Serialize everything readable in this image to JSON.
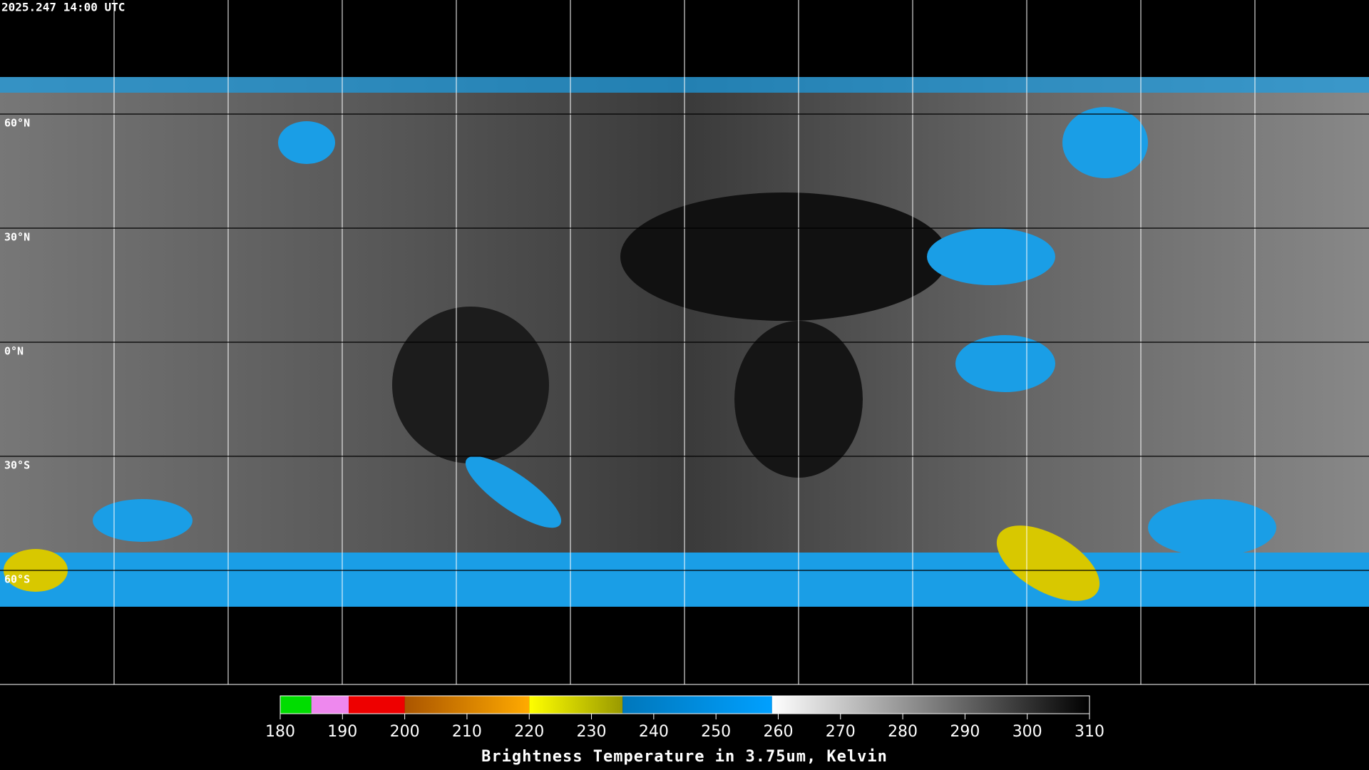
{
  "header": {
    "title": "2025.247 14:00 UTC"
  },
  "map": {
    "lat_range": [
      90,
      -90
    ],
    "lat_ticks": [
      {
        "value": 60,
        "label": "60°N"
      },
      {
        "value": 30,
        "label": "30°N"
      },
      {
        "value": 0,
        "label": "0°N"
      },
      {
        "value": -30,
        "label": "30°S"
      },
      {
        "value": -60,
        "label": "60°S"
      }
    ]
  },
  "colorbar": {
    "label": "Brightness Temperature in 3.75um, Kelvin",
    "range": [
      180,
      310
    ],
    "ticks": [
      180,
      190,
      200,
      210,
      220,
      230,
      240,
      250,
      260,
      270,
      280,
      290,
      300,
      310
    ],
    "segments": [
      {
        "from": 180,
        "to": 185,
        "colors": [
          "#00dd00",
          "#00dd00"
        ]
      },
      {
        "from": 185,
        "to": 191,
        "colors": [
          "#ee88ee",
          "#ee88ee"
        ]
      },
      {
        "from": 191,
        "to": 200,
        "colors": [
          "#ee0000",
          "#ee0000"
        ]
      },
      {
        "from": 200,
        "to": 220,
        "colors": [
          "#aa5500",
          "#ffaa00"
        ]
      },
      {
        "from": 220,
        "to": 235,
        "colors": [
          "#ffff00",
          "#999900"
        ]
      },
      {
        "from": 235,
        "to": 259,
        "colors": [
          "#0077bb",
          "#00a0ff"
        ]
      },
      {
        "from": 259,
        "to": 310,
        "colors": [
          "#ffffff",
          "#000000"
        ]
      }
    ]
  }
}
